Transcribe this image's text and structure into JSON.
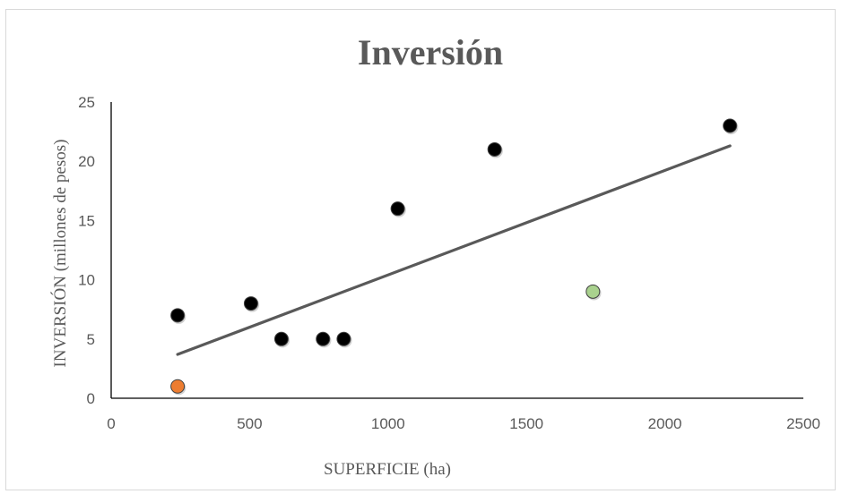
{
  "chart_data": {
    "type": "scatter",
    "title": "Inversión",
    "xlabel": "SUPERFICIE (ha)",
    "ylabel": "INVERSIÓN (millones de pesos)",
    "xlim": [
      0,
      2500
    ],
    "ylim": [
      0,
      25
    ],
    "x_ticks": [
      "0",
      "500",
      "1000",
      "1500",
      "2000",
      "2500"
    ],
    "y_ticks": [
      "0",
      "5",
      "10",
      "15",
      "20",
      "25"
    ],
    "grid": false,
    "legend": "none",
    "points": [
      {
        "x": 240,
        "y": 7,
        "color": "#000000"
      },
      {
        "x": 505,
        "y": 8,
        "color": "#000000"
      },
      {
        "x": 615,
        "y": 5,
        "color": "#000000"
      },
      {
        "x": 765,
        "y": 5,
        "color": "#000000"
      },
      {
        "x": 840,
        "y": 5,
        "color": "#000000"
      },
      {
        "x": 1035,
        "y": 16,
        "color": "#000000"
      },
      {
        "x": 1385,
        "y": 21,
        "color": "#000000"
      },
      {
        "x": 2235,
        "y": 23,
        "color": "#000000"
      },
      {
        "x": 1740,
        "y": 9,
        "color": "#a9d18e"
      },
      {
        "x": 240,
        "y": 1,
        "color": "#ed7d31"
      }
    ],
    "trendline": {
      "type": "linear",
      "x": [
        240,
        2235
      ],
      "y": [
        3.7,
        21.3
      ],
      "color": "#595959"
    }
  }
}
